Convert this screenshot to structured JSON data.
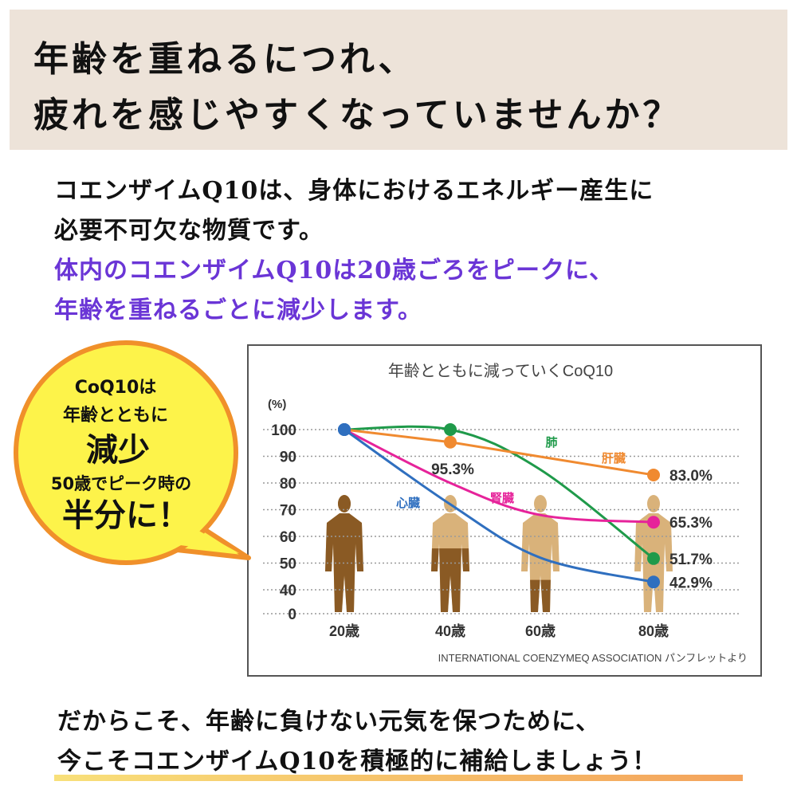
{
  "header": {
    "title_line1": "年齢を重ねるにつれ、",
    "title_line2": "疲れを感じやすくなっていませんか？"
  },
  "intro": {
    "line1": "コエンザイムQ10は、身体におけるエネルギー産生に",
    "line2": "必要不可欠な物質です。",
    "highlight_line1": "体内のコエンザイムQ10は20歳ごろをピークに、",
    "highlight_line2": "年齢を重ねるごとに減少します。",
    "highlight_color": "#6a35d6"
  },
  "bubble": {
    "line1": "CoQ10は",
    "line2": "年齢とともに",
    "line3": "減少",
    "line4": "50歳でピーク時の",
    "line5": "半分に！",
    "fill_color": "#fdf34a",
    "border_color": "#f0902a"
  },
  "chart_data": {
    "type": "line",
    "title": "年齢とともに減っていくCoQ10",
    "ylabel": "(%)",
    "yticks": [
      100,
      90,
      80,
      70,
      60,
      50,
      40,
      0
    ],
    "categories": [
      "20歳",
      "40歳",
      "60歳",
      "80歳"
    ],
    "grid": "dotted horizontal",
    "series": [
      {
        "name": "肺",
        "color": "#1f9a4a",
        "values": [
          100,
          100,
          85,
          51.7
        ],
        "markers": [
          0,
          1,
          3
        ],
        "end_label": "51.7%"
      },
      {
        "name": "肝臓",
        "color": "#f08a30",
        "values": [
          100,
          95.3,
          89,
          83.0
        ],
        "markers": [
          0,
          1,
          3
        ],
        "mid_label": "95.3%",
        "end_label": "83.0%"
      },
      {
        "name": "腎臓",
        "color": "#e6239a",
        "values": [
          100,
          80,
          68,
          65.3
        ],
        "markers": [
          0,
          3
        ],
        "end_label": "65.3%"
      },
      {
        "name": "心臓",
        "color": "#2f6fbf",
        "values": [
          100,
          72,
          52,
          42.9
        ],
        "markers": [
          0,
          3
        ],
        "end_label": "42.9%"
      }
    ],
    "source": "INTERNATIONAL COENZYMEQ ASSOCIATION パンフレットより"
  },
  "footer": {
    "line1": "だからこそ、年齢に負けない元気を保つために、",
    "line2": "今こそコエンザイムQ10を積極的に補給しましょう！"
  }
}
